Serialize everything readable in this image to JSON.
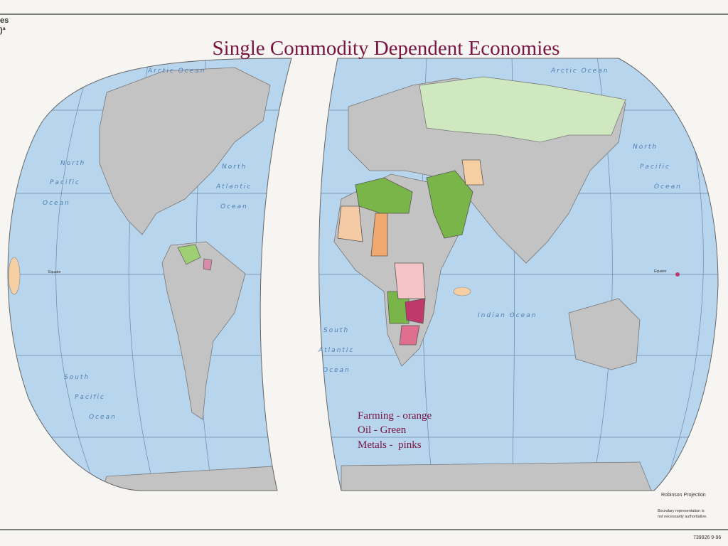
{
  "title": "Single Commodity Dependent Economies",
  "corner_fragments": [
    "es",
    ")ª"
  ],
  "ocean_labels": {
    "arctic_left": "Arctic Ocean",
    "arctic_right": "Arctic Ocean",
    "north_pacific_left": [
      "North",
      "Pacific",
      "Ocean"
    ],
    "north_atlantic": [
      "North",
      "Atlantic",
      "Ocean"
    ],
    "south_pacific": [
      "South",
      "Pacific",
      "Ocean"
    ],
    "south_atlantic": [
      "South",
      "Atlantic",
      "Ocean"
    ],
    "indian": "Indian Ocean",
    "north_pacific_right": [
      "North",
      "Pacific",
      "Ocean"
    ]
  },
  "equator_labels": [
    "Equator",
    "Equator"
  ],
  "legend": [
    "Farming - orange",
    "Oil - Green",
    "Metals -  pinks"
  ],
  "projection": "Robinson Projection",
  "disclaimer": [
    "Boundary representation is",
    "not necessarily authoritative."
  ],
  "code": "739926 9-96"
}
